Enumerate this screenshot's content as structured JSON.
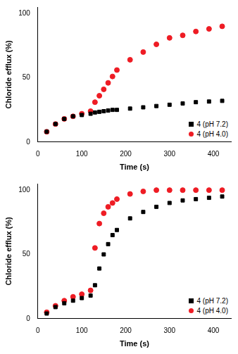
{
  "chart_data": [
    {
      "type": "scatter",
      "x_label": "Time (s)",
      "y_label": "Chloride efflux (%)",
      "xlim": [
        0,
        440
      ],
      "xticks": [
        0,
        100,
        200,
        300,
        400
      ],
      "ylim": [
        0,
        105
      ],
      "yticks": [
        0,
        50,
        100
      ],
      "grid": false,
      "legend": "lower right",
      "x": [
        20,
        40,
        60,
        80,
        100,
        120,
        130,
        140,
        150,
        160,
        170,
        180,
        210,
        240,
        270,
        300,
        330,
        360,
        390,
        420
      ],
      "series": [
        {
          "name": "4 (pH 7.2)",
          "color": "#000000",
          "marker": "square",
          "values": [
            8,
            14,
            18,
            20,
            21,
            22,
            23,
            23.5,
            24,
            24.5,
            25,
            25,
            26,
            27,
            28,
            29,
            30,
            31,
            31.5,
            32
          ]
        },
        {
          "name": "4 (pH 4.0)",
          "color": "#ee1c24",
          "marker": "circle",
          "values": [
            8,
            14,
            18,
            20,
            22,
            24,
            31,
            36,
            41,
            46,
            51,
            56,
            64,
            70,
            76,
            81,
            83,
            86,
            88,
            90
          ]
        }
      ]
    },
    {
      "type": "scatter",
      "x_label": "Time (s)",
      "y_label": "Chloride efflux (%)",
      "xlim": [
        0,
        440
      ],
      "xticks": [
        0,
        100,
        200,
        300,
        400
      ],
      "ylim": [
        0,
        105
      ],
      "yticks": [
        0,
        50,
        100
      ],
      "grid": false,
      "legend": "lower right",
      "x": [
        20,
        40,
        60,
        80,
        100,
        120,
        130,
        140,
        150,
        160,
        170,
        180,
        210,
        240,
        270,
        300,
        330,
        360,
        390,
        420
      ],
      "series": [
        {
          "name": "4 (pH 7.2)",
          "color": "#000000",
          "marker": "square",
          "values": [
            4,
            9,
            12,
            14,
            16,
            18,
            26,
            39,
            50,
            58,
            65,
            69,
            78,
            83,
            87,
            90,
            92,
            93,
            94,
            95
          ]
        },
        {
          "name": "4 (pH 4.0)",
          "color": "#ee1c24",
          "marker": "circle",
          "values": [
            5,
            10,
            14,
            17,
            19,
            22,
            55,
            74,
            82,
            87,
            90,
            93,
            97,
            99,
            100,
            100,
            100,
            100,
            100,
            100
          ]
        }
      ]
    }
  ]
}
